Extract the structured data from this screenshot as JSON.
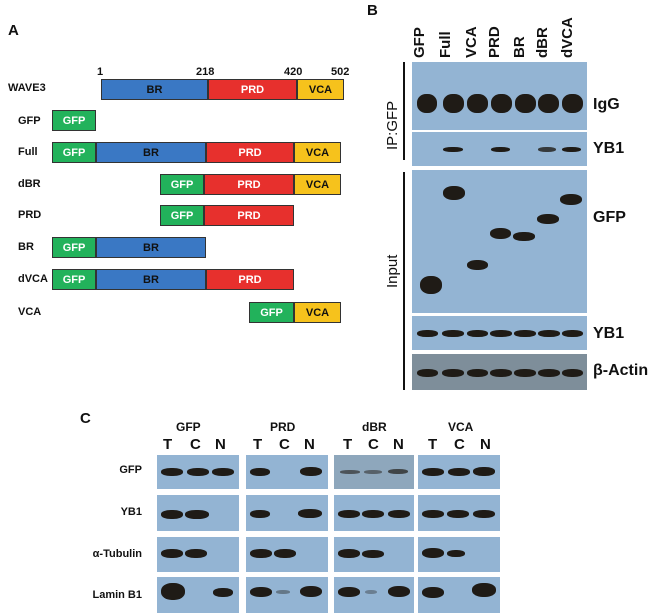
{
  "panels": {
    "a": "A",
    "b": "B",
    "c": "C"
  },
  "panelA": {
    "protein": "WAVE3",
    "positions": [
      "1",
      "218",
      "420",
      "502"
    ],
    "rows": [
      {
        "label": "WAVE3",
        "domains": [
          "BR",
          "PRD",
          "VCA"
        ]
      },
      {
        "label": "GFP",
        "domains": [
          "GFP"
        ]
      },
      {
        "label": "Full",
        "domains": [
          "GFP",
          "BR",
          "PRD",
          "VCA"
        ]
      },
      {
        "label": "dBR",
        "domains": [
          "GFP",
          "PRD",
          "VCA"
        ]
      },
      {
        "label": "PRD",
        "domains": [
          "GFP",
          "PRD"
        ]
      },
      {
        "label": "BR",
        "domains": [
          "GFP",
          "BR"
        ]
      },
      {
        "label": "dVCA",
        "domains": [
          "GFP",
          "BR",
          "PRD"
        ]
      },
      {
        "label": "VCA",
        "domains": [
          "GFP",
          "VCA"
        ]
      }
    ]
  },
  "panelB": {
    "lanes": [
      "GFP",
      "Full",
      "VCA",
      "PRD",
      "BR",
      "dBR",
      "dVCA"
    ],
    "groups": {
      "ip": "IP:GFP",
      "input": "Input"
    },
    "blots": [
      "IgG",
      "YB1",
      "GFP",
      "YB1",
      "β-Actin"
    ]
  },
  "panelC": {
    "groups": [
      "GFP",
      "PRD",
      "dBR",
      "VCA"
    ],
    "fractions": [
      "T",
      "C",
      "N"
    ],
    "rows": [
      "GFP",
      "YB1",
      "α-Tubulin",
      "Lamin B1"
    ]
  },
  "colors": {
    "gfp": "#22b25b",
    "br": "#3a78c4",
    "prd": "#e7302d",
    "vca": "#f6c21c",
    "blot": "#93b4d3"
  }
}
